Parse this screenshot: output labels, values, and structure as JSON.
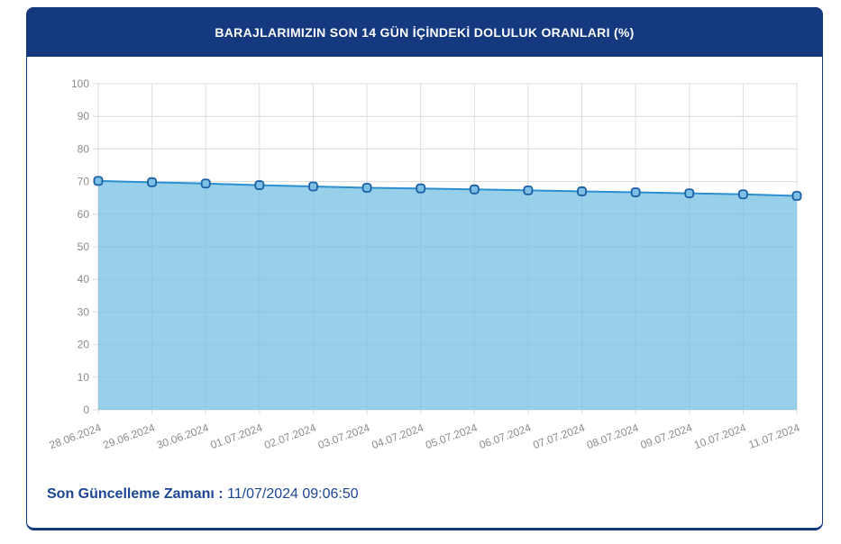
{
  "card": {
    "title": "BARAJLARIMIZIN SON 14 GÜN İÇİNDEKİ DOLULUK ORANLARI (%)",
    "footer": {
      "label": "Son Güncelleme Zamanı",
      "separator": " : ",
      "value": "11/07/2024 09:06:50"
    }
  },
  "colors": {
    "header_bg": "#15397e",
    "card_border": "#15397e",
    "title_text": "#ffffff",
    "footer_text": "#1c4693",
    "grid_line": "#dcdcdc",
    "axis_label": "#8c8c8c",
    "area_fill_rgba": "rgba(118,191,226,0.75)",
    "line_stroke": "#2b8fd0",
    "marker_fill": "#7cc0e6",
    "marker_stroke": "#1b5fa5"
  },
  "chart_data": {
    "type": "area",
    "title": "BARAJLARIMIZIN SON 14 GÜN İÇİNDEKİ DOLULUK ORANLARI (%)",
    "categories": [
      "28.06.2024",
      "29.06.2024",
      "30.06.2024",
      "01.07.2024",
      "02.07.2024",
      "03.07.2024",
      "04.07.2024",
      "05.07.2024",
      "06.07.2024",
      "07.07.2024",
      "08.07.2024",
      "09.07.2024",
      "10.07.2024",
      "11.07.2024"
    ],
    "values": [
      70.2,
      69.8,
      69.4,
      68.9,
      68.5,
      68.1,
      67.9,
      67.6,
      67.3,
      67.0,
      66.7,
      66.4,
      66.1,
      65.6
    ],
    "xlabel": "",
    "ylabel": "",
    "ylim": [
      0,
      100
    ],
    "ytick_step": 10,
    "grid": true,
    "legend": false,
    "x_label_rotation": -20
  }
}
